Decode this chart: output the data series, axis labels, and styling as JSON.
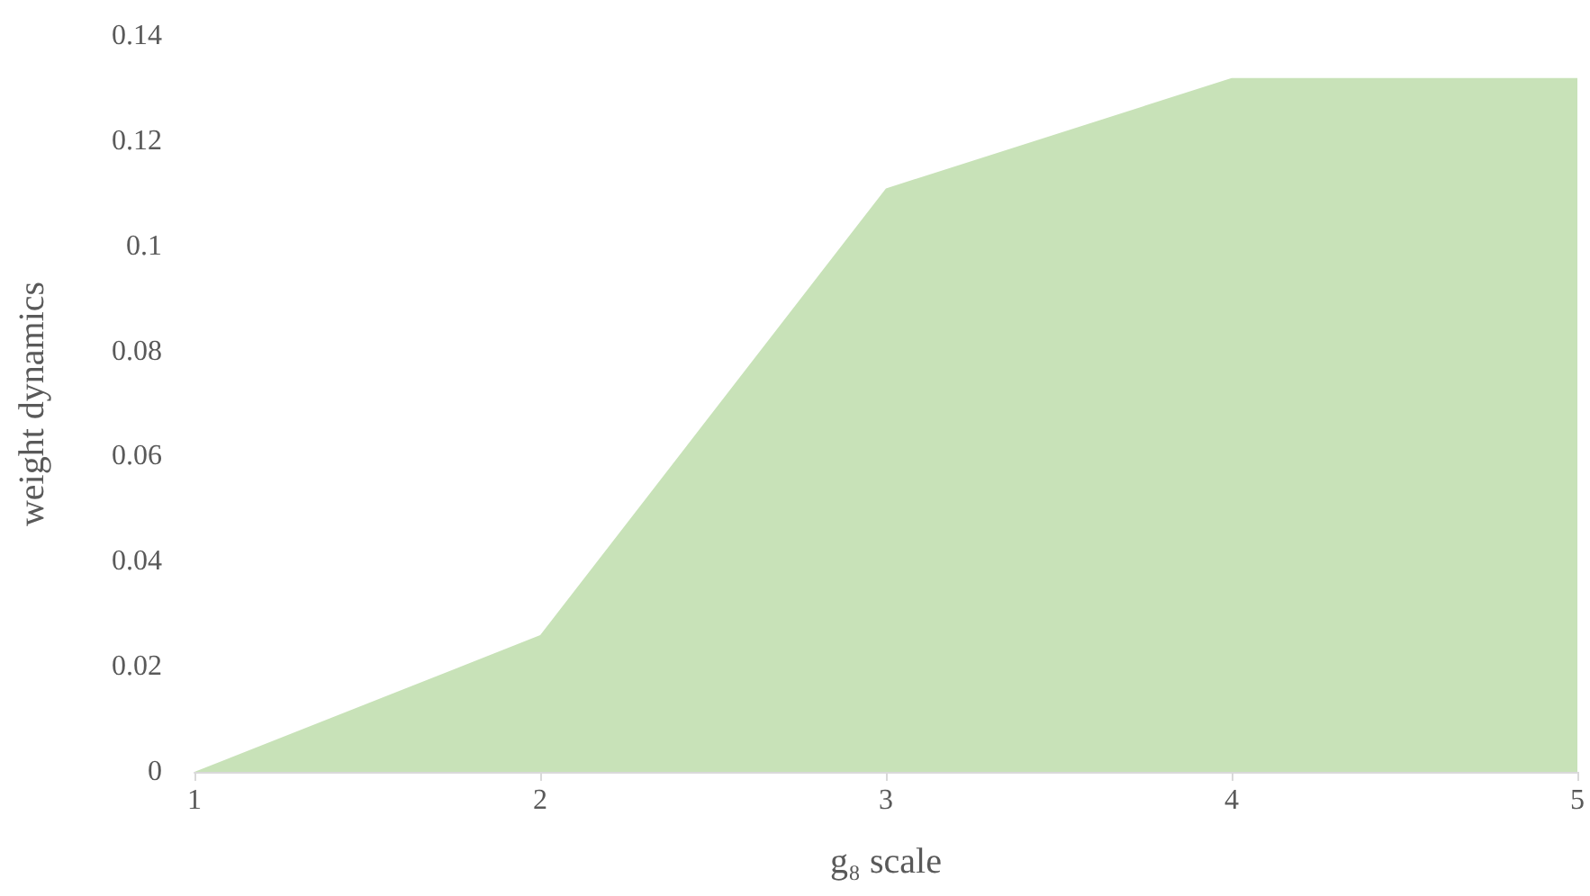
{
  "chart_data": {
    "type": "area",
    "xlabel": "g₈ scale",
    "ylabel": "weight dynamics",
    "x": [
      1,
      2,
      3,
      4,
      5
    ],
    "series": [
      {
        "color": "#c8e2b8",
        "values": [
          0,
          0.026,
          0.111,
          0.132,
          0.132
        ]
      }
    ],
    "xlim": [
      1,
      5
    ],
    "xticks": [
      1,
      2,
      3,
      4,
      5
    ],
    "ylim": [
      0,
      0.14
    ],
    "yticks": [
      0,
      0.02,
      0.04,
      0.06,
      0.08,
      0.1,
      0.12,
      0.14
    ],
    "grid": false
  }
}
